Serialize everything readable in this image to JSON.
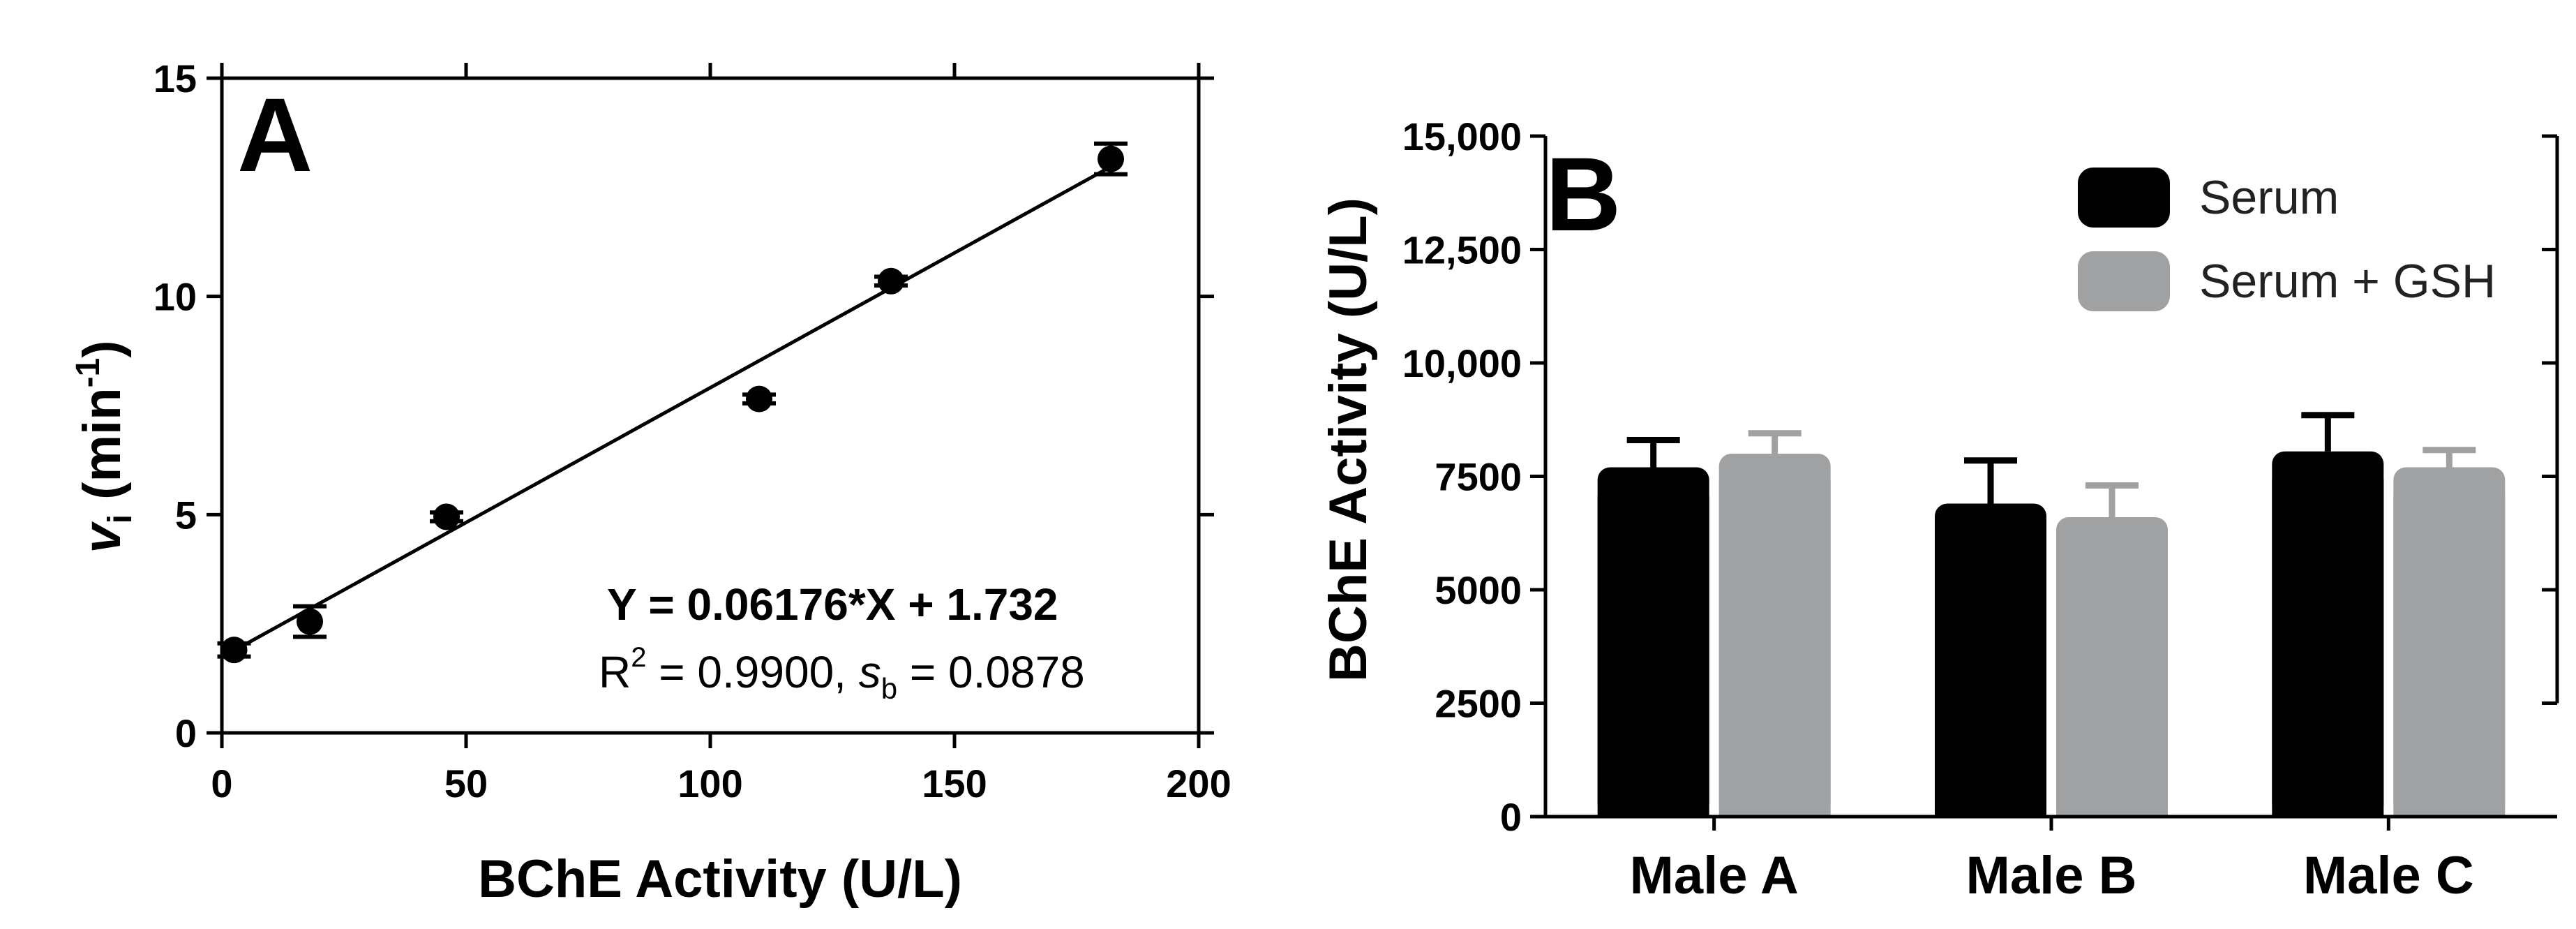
{
  "chart_data": [
    {
      "type": "scatter",
      "panel_label": "A",
      "title": "",
      "xlabel": "BChE Activity (U/L)",
      "ylabel_main": "v",
      "ylabel_sub": "i",
      "ylabel_rest": " (min",
      "ylabel_sup": "-1",
      "ylabel_close": ")",
      "xlim": [
        0,
        200
      ],
      "ylim": [
        0,
        15
      ],
      "xticks": [
        0,
        50,
        100,
        150,
        200
      ],
      "xtick_labels": [
        "0",
        "50",
        "100",
        "150",
        "200"
      ],
      "yticks": [
        0,
        5,
        10,
        15
      ],
      "ytick_labels": [
        "0",
        "5",
        "10",
        "15"
      ],
      "points": [
        {
          "x": 2.5,
          "y": 1.9,
          "err": 0.15
        },
        {
          "x": 18,
          "y": 2.55,
          "err": 0.35
        },
        {
          "x": 46,
          "y": 4.95,
          "err": 0.1
        },
        {
          "x": 110,
          "y": 7.65,
          "err": 0.1
        },
        {
          "x": 137,
          "y": 10.35,
          "err": 0.1
        },
        {
          "x": 182,
          "y": 13.15,
          "err": 0.35
        }
      ],
      "fit": {
        "slope": 0.06176,
        "intercept": 1.732,
        "x_range": [
          0,
          182
        ]
      },
      "equation_text": "Y = 0.06176*X + 1.732",
      "stats": {
        "r_label": "R",
        "r_sup": "2",
        "r_value_text": " = 0.9900, ",
        "s_label": "s",
        "s_sub": "b",
        "s_value_text": " = 0.0878"
      },
      "grid": false
    },
    {
      "type": "bar",
      "panel_label": "B",
      "title": "",
      "xlabel": "",
      "ylabel": "BChE Activity (U/L)",
      "ylim": [
        0,
        15000
      ],
      "yticks": [
        0,
        2500,
        5000,
        7500,
        10000,
        12500,
        15000
      ],
      "ytick_labels": [
        "0",
        "2500",
        "5000",
        "7500",
        "10,000",
        "12,500",
        "15,000"
      ],
      "categories": [
        "Male A",
        "Male B",
        "Male C"
      ],
      "series": [
        {
          "name": "Serum",
          "color": "#000000",
          "values": [
            7700,
            6900,
            8050
          ],
          "errors": [
            600,
            950,
            800
          ]
        },
        {
          "name": "Serum + GSH",
          "color": "#a0a1a3",
          "values": [
            8000,
            6600,
            7700
          ],
          "errors": [
            450,
            700,
            380
          ]
        }
      ],
      "legend_position": "top-right",
      "grid": false
    }
  ]
}
